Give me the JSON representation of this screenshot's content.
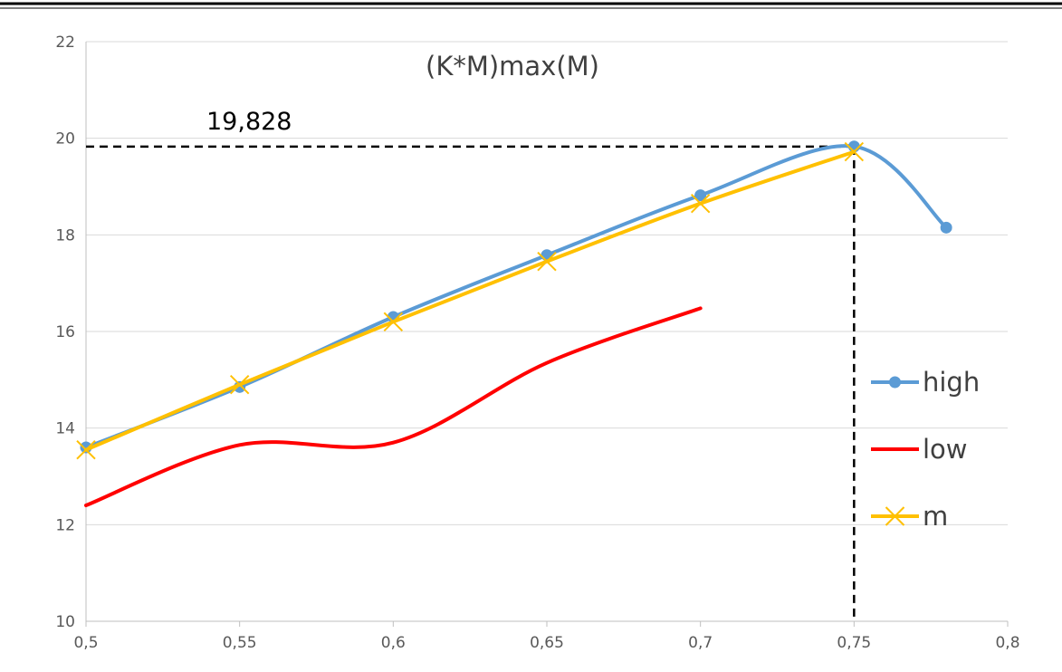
{
  "chart_data": {
    "type": "line",
    "title": "(K*M)max(M)",
    "xlabel": "",
    "ylabel": "",
    "xlim": [
      0.5,
      0.8
    ],
    "ylim": [
      10,
      22
    ],
    "x_ticks": [
      "0,5",
      "0,55",
      "0,6",
      "0,65",
      "0,7",
      "0,75",
      "0,8"
    ],
    "x_tick_values": [
      0.5,
      0.55,
      0.6,
      0.65,
      0.7,
      0.75,
      0.8
    ],
    "y_ticks": [
      "10",
      "12",
      "14",
      "16",
      "18",
      "20",
      "22"
    ],
    "y_tick_values": [
      10,
      12,
      14,
      16,
      18,
      20,
      22
    ],
    "grid": "horizontal",
    "legend_position": "right",
    "series": [
      {
        "name": "high",
        "color": "#5b9bd5",
        "marker": "circle",
        "x": [
          0.5,
          0.55,
          0.6,
          0.65,
          0.7,
          0.75,
          0.78
        ],
        "y": [
          13.6,
          14.85,
          16.3,
          17.58,
          18.82,
          19.83,
          18.15
        ]
      },
      {
        "name": "low",
        "color": "#ff0000",
        "marker": "none",
        "x": [
          0.5,
          0.55,
          0.6,
          0.65,
          0.7
        ],
        "y": [
          12.4,
          13.65,
          13.7,
          15.35,
          16.48
        ]
      },
      {
        "name": "m",
        "color": "#ffc000",
        "marker": "x",
        "x": [
          0.5,
          0.55,
          0.6,
          0.65,
          0.7,
          0.75
        ],
        "y": [
          13.55,
          14.9,
          16.2,
          17.45,
          18.65,
          19.72
        ]
      }
    ],
    "annotation": {
      "text": "19,828",
      "x": 0.75,
      "y": 19.828,
      "color": "#000000"
    },
    "grid_color": "#d9d9d9",
    "axis_color": "#bfbfbf"
  }
}
